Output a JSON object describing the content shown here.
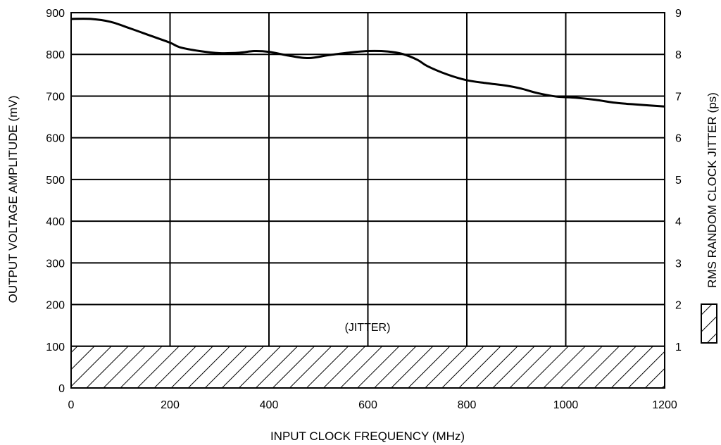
{
  "chart_data": {
    "type": "line",
    "xlabel": "INPUT CLOCK FREQUENCY (MHz)",
    "ylabel": "OUTPUT VOLTAGE AMPLITUDE (mV)",
    "y2label": "RMS RANDOM CLOCK JITTER (ps)",
    "xlim": [
      0,
      1200
    ],
    "ylim": [
      0,
      900
    ],
    "y2lim": [
      0,
      9
    ],
    "x_ticks": [
      "0",
      "200",
      "400",
      "600",
      "800",
      "1000",
      "1200"
    ],
    "y_ticks": [
      "0",
      "100",
      "200",
      "300",
      "400",
      "500",
      "600",
      "700",
      "800",
      "900"
    ],
    "y2_ticks": [
      "1",
      "2",
      "3",
      "4",
      "5",
      "6",
      "7",
      "8",
      "9"
    ],
    "grid": true,
    "series": [
      {
        "x": [
          0,
          40,
          80,
          120,
          160,
          200,
          220,
          260,
          300,
          340,
          370,
          400,
          440,
          480,
          520,
          560,
          600,
          640,
          670,
          700,
          720,
          760,
          800,
          840,
          880,
          910,
          940,
          980,
          1020,
          1060,
          1100,
          1140,
          1200
        ],
        "y": [
          885,
          885,
          878,
          862,
          845,
          828,
          817,
          808,
          803,
          804,
          808,
          806,
          797,
          791,
          798,
          804,
          808,
          807,
          801,
          787,
          772,
          752,
          738,
          731,
          725,
          718,
          708,
          699,
          696,
          691,
          684,
          680,
          675
        ]
      },
      {
        "type": "area",
        "hatch": true,
        "x": [
          0,
          1200
        ],
        "y2": [
          1,
          1
        ]
      }
    ],
    "annotations": [
      {
        "text": "(JITTER)",
        "x": 600,
        "y": 145
      }
    ]
  }
}
